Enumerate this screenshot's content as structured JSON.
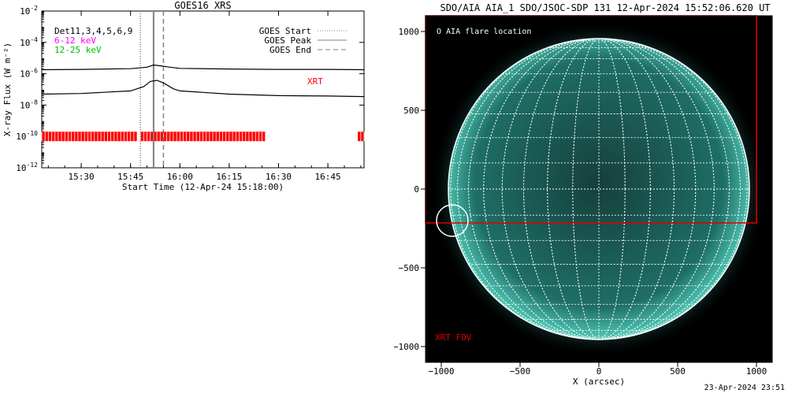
{
  "footer_timestamp": "23-Apr-2024 23:51",
  "chart_data": [
    {
      "type": "line",
      "title": "GOES16 XRS",
      "xlabel": "Start Time (12-Apr-24 15:18:00)",
      "ylabel": "X-ray Flux (W m⁻²)",
      "y_scale": "log",
      "ylim": [
        1e-12,
        0.01
      ],
      "xlim": [
        "15:18",
        "16:56"
      ],
      "x_tick_labels": [
        "15:30",
        "15:45",
        "16:00",
        "16:15",
        "16:30",
        "16:45"
      ],
      "y_tick_labels": [
        {
          "base": "10",
          "exp": "-2"
        },
        {
          "base": "10",
          "exp": "-4"
        },
        {
          "base": "10",
          "exp": "-6"
        },
        {
          "base": "10",
          "exp": "-8"
        },
        {
          "base": "10",
          "exp": "-10"
        },
        {
          "base": "10",
          "exp": "-12"
        }
      ],
      "det_label": "Det11,3,4,5,6,9",
      "series": [
        {
          "name": "6-12 keV",
          "color": "#ff00ff"
        },
        {
          "name": "12-25 keV",
          "color": "#00c000"
        }
      ],
      "goes_series": [
        {
          "color": "#000000",
          "x": [
            "15:18",
            "15:30",
            "15:45",
            "15:50",
            "15:52",
            "15:54",
            "15:57",
            "16:00",
            "16:15",
            "16:30",
            "16:45",
            "16:56"
          ],
          "y": [
            1.8e-06,
            1.9e-06,
            2.1e-06,
            2.6e-06,
            3.6e-06,
            3.2e-06,
            2.6e-06,
            2.2e-06,
            2e-06,
            1.9e-06,
            1.9e-06,
            1.8e-06
          ]
        },
        {
          "color": "#000000",
          "x": [
            "15:18",
            "15:30",
            "15:45",
            "15:49",
            "15:51",
            "15:53",
            "15:55",
            "15:58",
            "16:00",
            "16:15",
            "16:30",
            "16:45",
            "16:56"
          ],
          "y": [
            5e-08,
            5.5e-08,
            8e-08,
            1.5e-07,
            3.2e-07,
            3.8e-07,
            2.6e-07,
            1.1e-07,
            8e-08,
            5e-08,
            4e-08,
            3.8e-08,
            3.5e-08
          ]
        }
      ],
      "event_lines": [
        {
          "label": "GOES Start",
          "x": "15:48",
          "style": "dotted",
          "color": "#808080"
        },
        {
          "label": "GOES Peak",
          "x": "15:52",
          "style": "solid",
          "color": "#808080"
        },
        {
          "label": "GOES End",
          "x": "15:55",
          "style": "dashed",
          "color": "#808080"
        }
      ],
      "xrt_label": "XRT",
      "xrt_color": "#ff0000",
      "xrt_flux_level": 1e-10,
      "xrt_coverage": [
        [
          "15:18",
          "15:47"
        ],
        [
          "15:48",
          "16:26"
        ],
        [
          "16:54",
          "16:56"
        ]
      ]
    },
    {
      "type": "image",
      "title": "SDO/AIA AIA_1 SDO/JSOC-SDP 131 12-Apr-2024 15:52:06.620 UT",
      "xlabel": "X (arcsec)",
      "ylabel": "",
      "xlim": [
        -1100,
        1100
      ],
      "ylim": [
        -1100,
        1100
      ],
      "x_ticks": [
        -1000,
        -500,
        0,
        500,
        1000
      ],
      "y_ticks": [
        -1000,
        -500,
        0,
        500,
        1000
      ],
      "x_tick_labels": [
        "−1000",
        "−500",
        "0",
        "500",
        "1000"
      ],
      "y_tick_labels": [
        "−1000",
        "−500",
        "0",
        "500",
        "1000"
      ],
      "solar_radius_arcsec": 955,
      "grid_color": "#ffffff",
      "disk_color": "#1e6e66",
      "legend_text": "O AIA flare location",
      "flare_location": {
        "x": -930,
        "y": -200,
        "radius": 100
      },
      "xrt_fov": {
        "x0": -1100,
        "x1": 1000,
        "y0": -215,
        "y1": 1100,
        "label": "XRT FOV",
        "color": "#e00000"
      }
    }
  ]
}
